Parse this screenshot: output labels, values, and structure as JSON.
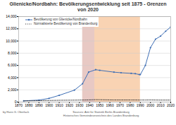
{
  "chart_data": {
    "type": "line",
    "title": "Glienicke/Nordbahn: Bevölkerungsentwicklung seit 1875 - Grenzen von 2020",
    "x": [
      1875,
      1890,
      1900,
      1910,
      1925,
      1933,
      1939,
      1946,
      1950,
      1964,
      1971,
      1981,
      1985,
      1989,
      1990,
      1995,
      2000,
      2005,
      2010,
      2015,
      2020
    ],
    "series": [
      {
        "name": "Bevölkerung von Glienicke/Nordbahn",
        "color": "#3f6fb5",
        "marker": "circle",
        "line_style": "solid",
        "values": [
          200,
          320,
          600,
          1100,
          1950,
          3000,
          4900,
          5300,
          5200,
          4900,
          4800,
          4700,
          4650,
          4500,
          4500,
          6000,
          8900,
          10300,
          10800,
          11600,
          12300
        ]
      },
      {
        "name": "Normalisierte Bevölkerung von Brandenburg",
        "color": "#333333",
        "line_style": "dotted",
        "values": [
          200,
          230,
          260,
          290,
          310,
          330,
          350,
          390,
          380,
          340,
          340,
          340,
          340,
          330,
          330,
          330,
          340,
          330,
          320,
          320,
          320
        ]
      }
    ],
    "periods": [
      {
        "start": 1933,
        "end": 1945,
        "color": "#e8c9c4"
      },
      {
        "start": 1945,
        "end": 1990,
        "color": "#f9d3b3"
      }
    ],
    "xlim": [
      1870,
      2020
    ],
    "xticks": [
      1870,
      1880,
      1890,
      1900,
      1910,
      1920,
      1930,
      1940,
      1950,
      1960,
      1970,
      1980,
      1990,
      2000,
      2010,
      2020
    ],
    "ylim": [
      0,
      14000
    ],
    "yticks": [
      0,
      {
        "value": 2000,
        "label": "2,000"
      },
      {
        "value": 4000,
        "label": "4,000"
      },
      {
        "value": 6000,
        "label": "6,000"
      },
      {
        "value": 8000,
        "label": "8,000"
      },
      {
        "value": 10000,
        "label": "10,000"
      },
      {
        "value": 12000,
        "label": "12,000"
      },
      {
        "value": 14000,
        "label": "14,000"
      }
    ],
    "grid": true,
    "legend": "top-left",
    "annotations": [
      "by Hans G. Oberlack",
      "Sources: Amt für Statistik Berlin-Brandenburg",
      "Historisches Gemeindeverzeichnis des Landes Brandenburg"
    ]
  }
}
